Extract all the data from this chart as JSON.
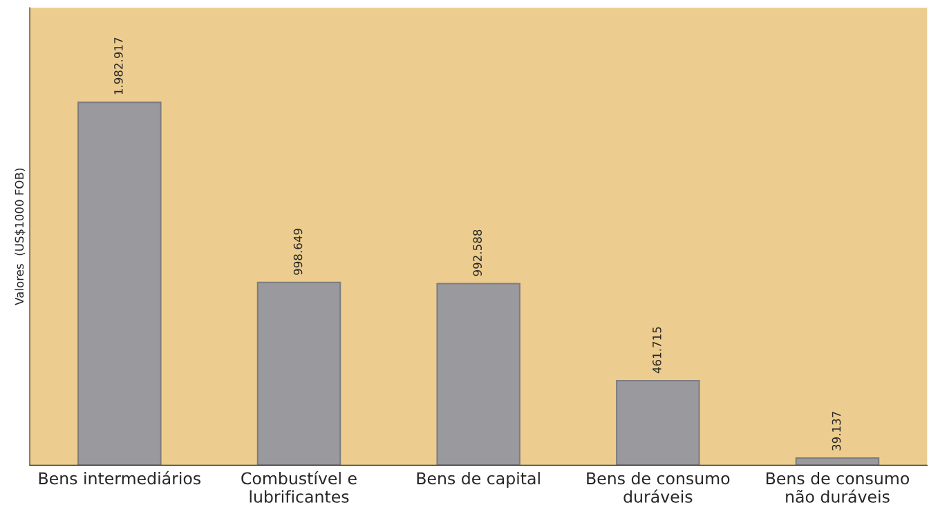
{
  "chart_data": {
    "type": "bar",
    "ylabel": "Valores  (US$1000 FOB)",
    "categories": [
      "Bens intermediários",
      "Combustível e\nlubrificantes",
      "Bens de capital",
      "Bens de consumo\nduráveis",
      "Bens de consumo\nnão duráveis"
    ],
    "values": [
      1982917,
      998649,
      992588,
      461715,
      39137
    ],
    "value_labels": [
      "1.982.917",
      "998.649",
      "992.588",
      "461.715",
      "39.137"
    ],
    "color": "#9a9a9e",
    "ylim": [
      0,
      2500000
    ],
    "tick_labels": "x",
    "grid": false,
    "legend": false
  }
}
